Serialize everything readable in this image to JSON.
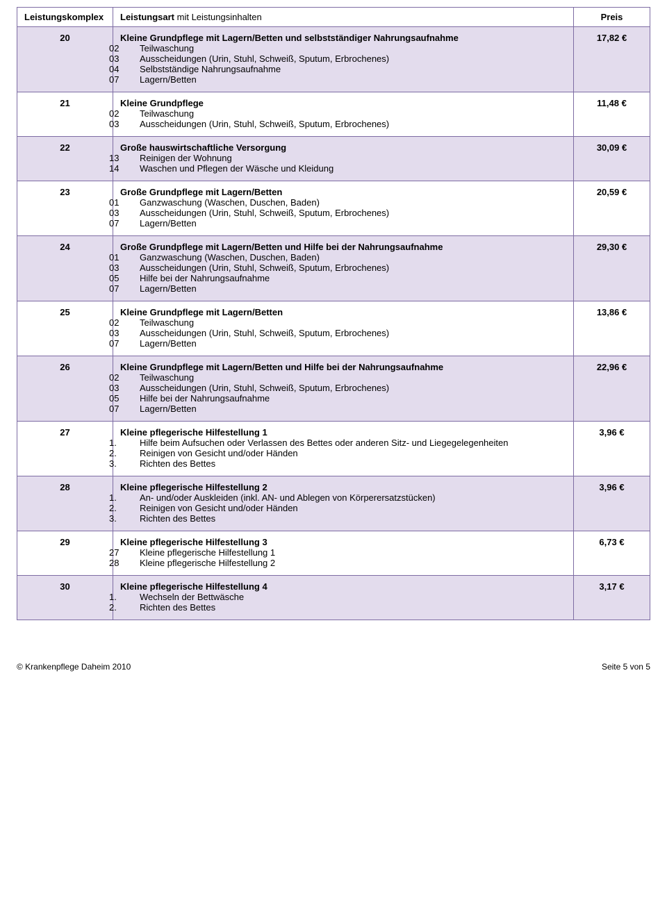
{
  "header": {
    "col1": "Leistungskomplex",
    "col2_bold": "Leistungsart",
    "col2_rest": " mit Leistungsinhalten",
    "col3": "Preis"
  },
  "rows": [
    {
      "id": "20",
      "shade": true,
      "price": "17,82 €",
      "title": "Kleine Grundpflege mit Lagern/Betten und selbstständiger Nahrungsaufnahme",
      "items": [
        {
          "n": "02",
          "t": "Teilwaschung"
        },
        {
          "n": "03",
          "t": "Ausscheidungen (Urin, Stuhl, Schweiß, Sputum, Erbrochenes)"
        },
        {
          "n": "04",
          "t": "Selbstständige Nahrungsaufnahme"
        },
        {
          "n": "07",
          "t": "Lagern/Betten"
        }
      ]
    },
    {
      "id": "21",
      "shade": false,
      "price": "11,48 €",
      "title": "Kleine Grundpflege",
      "items": [
        {
          "n": "02",
          "t": "Teilwaschung"
        },
        {
          "n": "03",
          "t": "Ausscheidungen (Urin, Stuhl, Schweiß, Sputum, Erbrochenes)"
        }
      ]
    },
    {
      "id": "22",
      "shade": true,
      "price": "30,09 €",
      "title": "Große hauswirtschaftliche Versorgung",
      "items": [
        {
          "n": "13",
          "t": "Reinigen der Wohnung"
        },
        {
          "n": "14",
          "t": "Waschen und Pflegen der Wäsche und Kleidung"
        }
      ]
    },
    {
      "id": "23",
      "shade": false,
      "price": "20,59 €",
      "title": "Große Grundpflege mit Lagern/Betten",
      "items": [
        {
          "n": "01",
          "t": "Ganzwaschung (Waschen, Duschen, Baden)"
        },
        {
          "n": "03",
          "t": "Ausscheidungen (Urin, Stuhl, Schweiß, Sputum, Erbrochenes)"
        },
        {
          "n": "07",
          "t": "Lagern/Betten"
        }
      ]
    },
    {
      "id": "24",
      "shade": true,
      "price": "29,30 €",
      "title": "Große Grundpflege mit Lagern/Betten und Hilfe bei der Nahrungsaufnahme",
      "items": [
        {
          "n": "01",
          "t": "Ganzwaschung (Waschen, Duschen, Baden)"
        },
        {
          "n": "03",
          "t": "Ausscheidungen (Urin, Stuhl, Schweiß, Sputum, Erbrochenes)"
        },
        {
          "n": "05",
          "t": "Hilfe bei der Nahrungsaufnahme"
        },
        {
          "n": "07",
          "t": "Lagern/Betten"
        }
      ]
    },
    {
      "id": "25",
      "shade": false,
      "price": "13,86 €",
      "title": "Kleine Grundpflege mit Lagern/Betten",
      "items": [
        {
          "n": "02",
          "t": "Teilwaschung"
        },
        {
          "n": "03",
          "t": "Ausscheidungen (Urin, Stuhl, Schweiß, Sputum, Erbrochenes)"
        },
        {
          "n": "07",
          "t": "Lagern/Betten"
        }
      ]
    },
    {
      "id": "26",
      "shade": true,
      "price": "22,96 €",
      "title": "Kleine Grundpflege mit Lagern/Betten und Hilfe bei der Nahrungsaufnahme",
      "items": [
        {
          "n": "02",
          "t": "Teilwaschung"
        },
        {
          "n": "03",
          "t": "Ausscheidungen (Urin, Stuhl, Schweiß, Sputum, Erbrochenes)"
        },
        {
          "n": "05",
          "t": "Hilfe bei der Nahrungsaufnahme"
        },
        {
          "n": "07",
          "t": "Lagern/Betten"
        }
      ]
    },
    {
      "id": "27",
      "shade": false,
      "price": "3,96 €",
      "title": "Kleine pflegerische Hilfestellung 1",
      "items": [
        {
          "n": "1.",
          "t": "Hilfe beim Aufsuchen oder Verlassen des Bettes oder anderen Sitz- und Liegegelegenheiten"
        },
        {
          "n": "2.",
          "t": "Reinigen von Gesicht und/oder Händen"
        },
        {
          "n": "3.",
          "t": "Richten des Bettes"
        }
      ]
    },
    {
      "id": "28",
      "shade": true,
      "price": "3,96 €",
      "title": "Kleine pflegerische Hilfestellung 2",
      "items": [
        {
          "n": "1.",
          "t": "An- und/oder Auskleiden (inkl. AN- und Ablegen von Körperersatzstücken)"
        },
        {
          "n": "2.",
          "t": "Reinigen von Gesicht und/oder Händen"
        },
        {
          "n": "3.",
          "t": "Richten des Bettes"
        }
      ]
    },
    {
      "id": "29",
      "shade": false,
      "price": "6,73 €",
      "title": "Kleine pflegerische Hilfestellung 3",
      "items": [
        {
          "n": "27",
          "t": "Kleine pflegerische Hilfestellung 1"
        },
        {
          "n": "28",
          "t": "Kleine pflegerische Hilfestellung 2"
        }
      ]
    },
    {
      "id": "30",
      "shade": true,
      "price": "3,17 €",
      "title": "Kleine pflegerische Hilfestellung 4",
      "items": [
        {
          "n": "1.",
          "t": "Wechseln der Bettwäsche"
        },
        {
          "n": "2.",
          "t": "Richten des Bettes"
        }
      ]
    }
  ],
  "footer": {
    "left": "© Krankenpflege Daheim  2010",
    "right": "Seite 5 von 5"
  }
}
